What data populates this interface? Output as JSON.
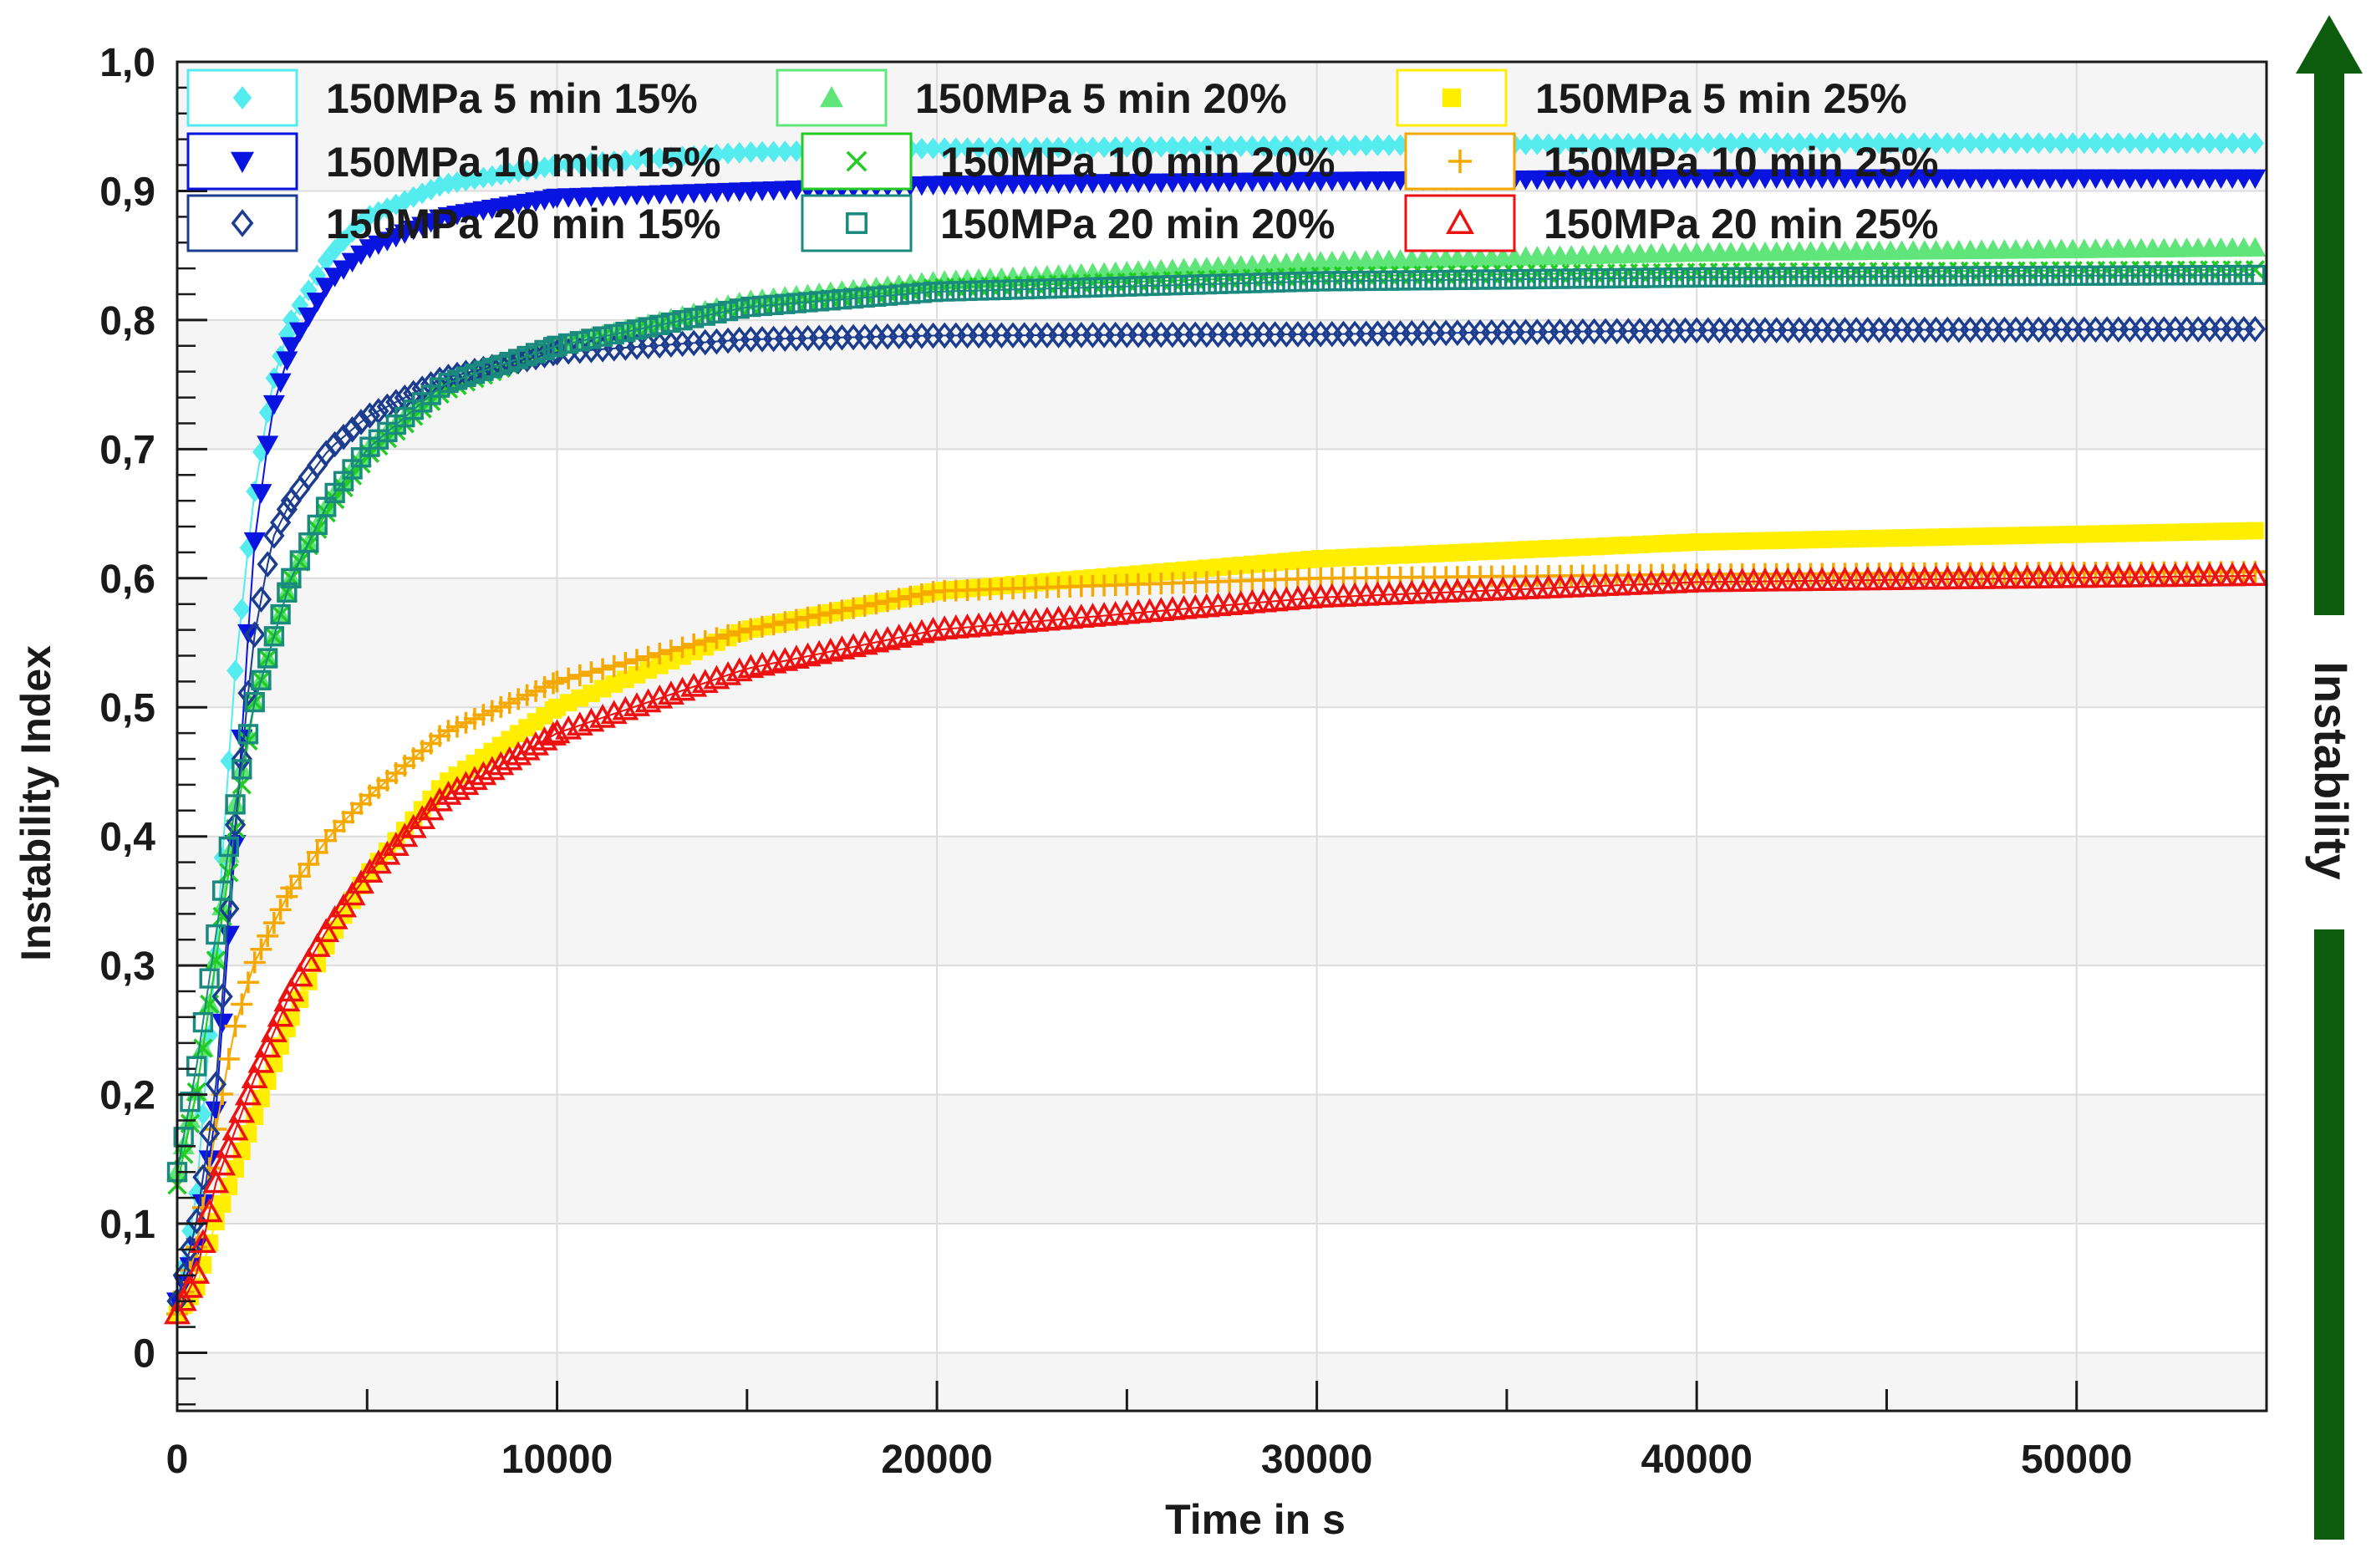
{
  "chart_data": {
    "type": "scatter",
    "title": "",
    "xlabel": "Time in s",
    "ylabel": "Instability Index",
    "side_label": "Instability",
    "xlim": [
      0,
      55000
    ],
    "ylim": [
      -0.045,
      1.0
    ],
    "x_ticks": [
      0,
      10000,
      20000,
      30000,
      40000,
      50000
    ],
    "x_tick_labels": [
      "0",
      "10000",
      "20000",
      "30000",
      "40000",
      "50000"
    ],
    "y_ticks": [
      0,
      0.1,
      0.2,
      0.3,
      0.4,
      0.5,
      0.6,
      0.7,
      0.8,
      0.9,
      1.0
    ],
    "y_tick_labels": [
      "0",
      "0,1",
      "0,2",
      "0,3",
      "0,4",
      "0,5",
      "0,6",
      "0,7",
      "0,8",
      "0,9",
      "1,0"
    ],
    "grid": true,
    "legend_position": "top",
    "colors": {
      "arrow": "#0d5c0d",
      "axis": "#1a1a1a",
      "grid": "#dcdcdc",
      "band": "#f5f5f5"
    },
    "series": [
      {
        "name": "150MPa 5 min 15%",
        "color": "#55ecf0",
        "marker": "diamond-filled",
        "points": [
          [
            0,
            0.04
          ],
          [
            500,
            0.12
          ],
          [
            1000,
            0.3
          ],
          [
            1500,
            0.52
          ],
          [
            2000,
            0.66
          ],
          [
            2500,
            0.75
          ],
          [
            3000,
            0.8
          ],
          [
            4000,
            0.85
          ],
          [
            5000,
            0.88
          ],
          [
            7000,
            0.905
          ],
          [
            10000,
            0.92
          ],
          [
            15000,
            0.93
          ],
          [
            20000,
            0.933
          ],
          [
            30000,
            0.935
          ],
          [
            40000,
            0.937
          ],
          [
            55000,
            0.937
          ]
        ]
      },
      {
        "name": "150MPa 5 min 20%",
        "color": "#5fe57a",
        "marker": "triangle-up-filled",
        "points": [
          [
            0,
            0.14
          ],
          [
            500,
            0.2
          ],
          [
            1000,
            0.3
          ],
          [
            1500,
            0.42
          ],
          [
            2000,
            0.5
          ],
          [
            3000,
            0.6
          ],
          [
            4000,
            0.66
          ],
          [
            5000,
            0.7
          ],
          [
            7000,
            0.75
          ],
          [
            10000,
            0.78
          ],
          [
            15000,
            0.815
          ],
          [
            20000,
            0.83
          ],
          [
            30000,
            0.845
          ],
          [
            40000,
            0.852
          ],
          [
            55000,
            0.856
          ]
        ]
      },
      {
        "name": "150MPa 5 min 25%",
        "color": "#ffee00",
        "marker": "square-filled",
        "points": [
          [
            0,
            0.03
          ],
          [
            500,
            0.05
          ],
          [
            1000,
            0.1
          ],
          [
            2000,
            0.18
          ],
          [
            3000,
            0.26
          ],
          [
            4000,
            0.32
          ],
          [
            5000,
            0.37
          ],
          [
            7000,
            0.44
          ],
          [
            10000,
            0.5
          ],
          [
            15000,
            0.56
          ],
          [
            20000,
            0.59
          ],
          [
            30000,
            0.615
          ],
          [
            40000,
            0.628
          ],
          [
            55000,
            0.637
          ]
        ]
      },
      {
        "name": "150MPa 10 min 15%",
        "color": "#0a14e0",
        "marker": "triangle-down-filled",
        "points": [
          [
            0,
            0.04
          ],
          [
            500,
            0.08
          ],
          [
            1000,
            0.18
          ],
          [
            1500,
            0.38
          ],
          [
            2000,
            0.62
          ],
          [
            2500,
            0.73
          ],
          [
            3000,
            0.78
          ],
          [
            4000,
            0.83
          ],
          [
            5000,
            0.855
          ],
          [
            7000,
            0.88
          ],
          [
            10000,
            0.895
          ],
          [
            15000,
            0.9
          ],
          [
            20000,
            0.905
          ],
          [
            30000,
            0.908
          ],
          [
            40000,
            0.91
          ],
          [
            55000,
            0.91
          ]
        ]
      },
      {
        "name": "150MPa 10 min 20%",
        "color": "#22cc22",
        "marker": "cross",
        "points": [
          [
            0,
            0.13
          ],
          [
            500,
            0.2
          ],
          [
            1000,
            0.3
          ],
          [
            1500,
            0.4
          ],
          [
            2000,
            0.5
          ],
          [
            3000,
            0.6
          ],
          [
            4000,
            0.655
          ],
          [
            5000,
            0.695
          ],
          [
            7000,
            0.745
          ],
          [
            10000,
            0.78
          ],
          [
            15000,
            0.81
          ],
          [
            20000,
            0.825
          ],
          [
            30000,
            0.834
          ],
          [
            40000,
            0.837
          ],
          [
            55000,
            0.839
          ]
        ]
      },
      {
        "name": "150MPa 10 min 25%",
        "color": "#f5a800",
        "marker": "plus",
        "points": [
          [
            0,
            0.03
          ],
          [
            500,
            0.08
          ],
          [
            1000,
            0.17
          ],
          [
            1500,
            0.25
          ],
          [
            2000,
            0.3
          ],
          [
            3000,
            0.36
          ],
          [
            4000,
            0.4
          ],
          [
            5000,
            0.43
          ],
          [
            7000,
            0.48
          ],
          [
            10000,
            0.52
          ],
          [
            15000,
            0.56
          ],
          [
            20000,
            0.59
          ],
          [
            30000,
            0.6
          ],
          [
            40000,
            0.603
          ],
          [
            55000,
            0.605
          ]
        ]
      },
      {
        "name": "150MPa 20 min 15%",
        "color": "#1c3d8f",
        "marker": "diamond-open",
        "points": [
          [
            0,
            0.04
          ],
          [
            500,
            0.1
          ],
          [
            1000,
            0.2
          ],
          [
            1500,
            0.4
          ],
          [
            2000,
            0.55
          ],
          [
            2500,
            0.63
          ],
          [
            3000,
            0.66
          ],
          [
            4000,
            0.7
          ],
          [
            5000,
            0.725
          ],
          [
            7000,
            0.755
          ],
          [
            10000,
            0.775
          ],
          [
            15000,
            0.785
          ],
          [
            20000,
            0.788
          ],
          [
            30000,
            0.789
          ],
          [
            40000,
            0.792
          ],
          [
            55000,
            0.793
          ]
        ]
      },
      {
        "name": "150MPa 20 min 20%",
        "color": "#1a8a7e",
        "marker": "square-open",
        "points": [
          [
            0,
            0.14
          ],
          [
            500,
            0.22
          ],
          [
            1000,
            0.32
          ],
          [
            1500,
            0.42
          ],
          [
            2000,
            0.5
          ],
          [
            3000,
            0.6
          ],
          [
            4000,
            0.66
          ],
          [
            5000,
            0.7
          ],
          [
            7000,
            0.75
          ],
          [
            10000,
            0.78
          ],
          [
            15000,
            0.81
          ],
          [
            20000,
            0.822
          ],
          [
            30000,
            0.83
          ],
          [
            40000,
            0.833
          ],
          [
            55000,
            0.835
          ]
        ]
      },
      {
        "name": "150MPa 20 min 25%",
        "color": "#ee1111",
        "marker": "triangle-up-open",
        "points": [
          [
            0,
            0.03
          ],
          [
            500,
            0.06
          ],
          [
            1000,
            0.13
          ],
          [
            2000,
            0.21
          ],
          [
            3000,
            0.28
          ],
          [
            4000,
            0.33
          ],
          [
            5000,
            0.37
          ],
          [
            7000,
            0.43
          ],
          [
            10000,
            0.48
          ],
          [
            15000,
            0.53
          ],
          [
            20000,
            0.56
          ],
          [
            30000,
            0.585
          ],
          [
            40000,
            0.597
          ],
          [
            55000,
            0.602
          ]
        ]
      }
    ]
  }
}
